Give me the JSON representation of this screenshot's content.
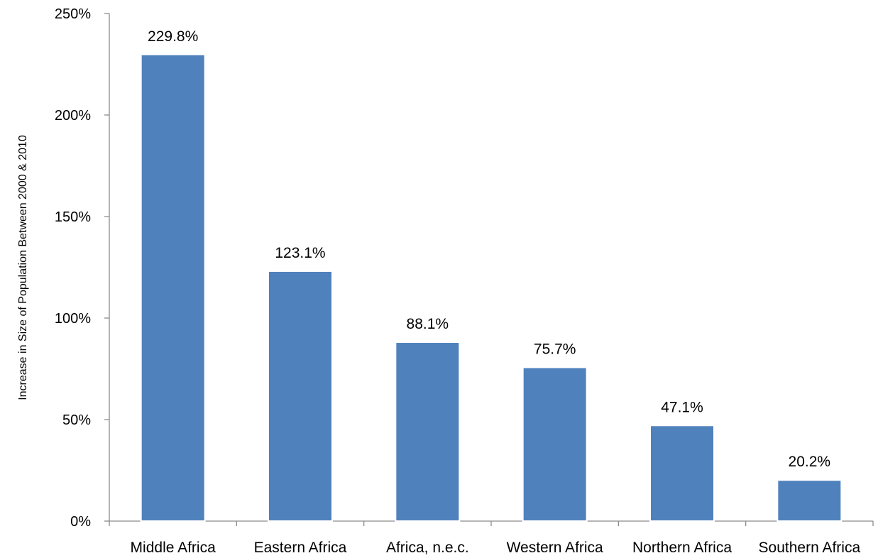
{
  "chart_data": {
    "type": "bar",
    "title": "",
    "xlabel": "",
    "ylabel": "Increase in Size of Population Between 2000 & 2010",
    "categories": [
      "Middle Africa",
      "Eastern Africa",
      "Africa, n.e.c.",
      "Western Africa",
      "Northern Africa",
      "Southern Africa"
    ],
    "values": [
      229.8,
      123.1,
      88.1,
      75.7,
      47.1,
      20.2
    ],
    "data_labels": [
      "229.8%",
      "123.1%",
      "88.1%",
      "75.7%",
      "47.1%",
      "20.2%"
    ],
    "ylim": [
      0,
      250
    ],
    "yticks": [
      0,
      50,
      100,
      150,
      200,
      250
    ],
    "ytick_labels": [
      "0%",
      "50%",
      "100%",
      "150%",
      "200%",
      "250%"
    ],
    "grid": false,
    "legend": "none",
    "colors": {
      "bar": "#4f81bd",
      "axis": "#8c8c8c",
      "text": "#000000"
    }
  }
}
